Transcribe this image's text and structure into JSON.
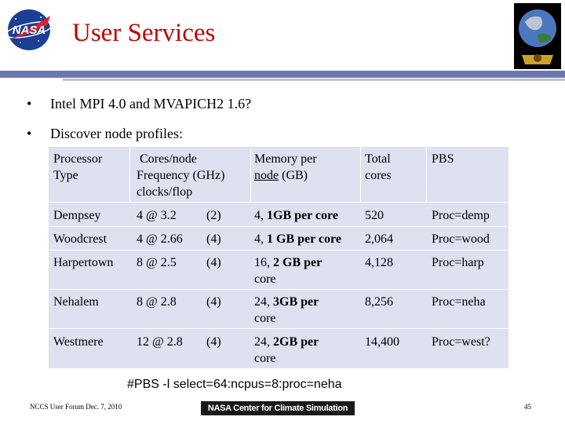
{
  "title": "User Services",
  "bullets": [
    "Intel MPI 4.0 and MVAPICH2 1.6?",
    "Discover node profiles:"
  ],
  "table": {
    "headers": {
      "processor": [
        "Processor",
        "Type"
      ],
      "cores": [
        "Cores/node",
        "Frequency (GHz)",
        "clocks/flop"
      ],
      "memory_line1": "Memory per",
      "memory_node": "node",
      "memory_rest": " (GB)",
      "total": [
        "Total",
        "cores"
      ],
      "pbs": "PBS"
    },
    "rows": [
      {
        "type": "Dempsey",
        "cores": "4 @  3.2",
        "flop": "(2)",
        "mem_pre": "4, ",
        "mem_bold": "1GB per core",
        "mem_line2": "",
        "total": "520",
        "pbs": "Proc=demp"
      },
      {
        "type": "Woodcrest",
        "cores": "4 @  2.66",
        "flop": "(4)",
        "mem_pre": "4, ",
        "mem_bold": "1 GB per core",
        "mem_line2": "",
        "total": "2,064",
        "pbs": "Proc=wood"
      },
      {
        "type": "Harpertown",
        "cores": "8 @  2.5",
        "flop": "(4)",
        "mem_pre": "16, ",
        "mem_bold": "2 GB per",
        "mem_line2": "core",
        "total": "4,128",
        "pbs": "Proc=harp"
      },
      {
        "type": "Nehalem",
        "cores": "8 @  2.8",
        "flop": "(4)",
        "mem_pre": "24, ",
        "mem_bold": "3GB per",
        "mem_line2": "core",
        "total": "8,256",
        "pbs": "Proc=neha"
      },
      {
        "type": "Westmere",
        "cores": "12 @ 2.8",
        "flop": "(4)",
        "mem_pre": "24, ",
        "mem_bold": "2GB per",
        "mem_line2": "core",
        "total": "14,400",
        "pbs": "Proc=west?"
      }
    ]
  },
  "pbs_command": "#PBS -l select=64:ncpus=8:proc=neha",
  "footer": {
    "left_text": "NCCS User Forum Dec. 7, 2010",
    "center_banner": "NASA Center for Climate Simulation",
    "page_number": "45"
  },
  "logos": {
    "left": "nasa-meatball-logo",
    "right": "nccs-globe-logo"
  },
  "colors": {
    "title": "#c00000",
    "divider": "#6b78b0",
    "table_bg": "#dde1f0"
  }
}
